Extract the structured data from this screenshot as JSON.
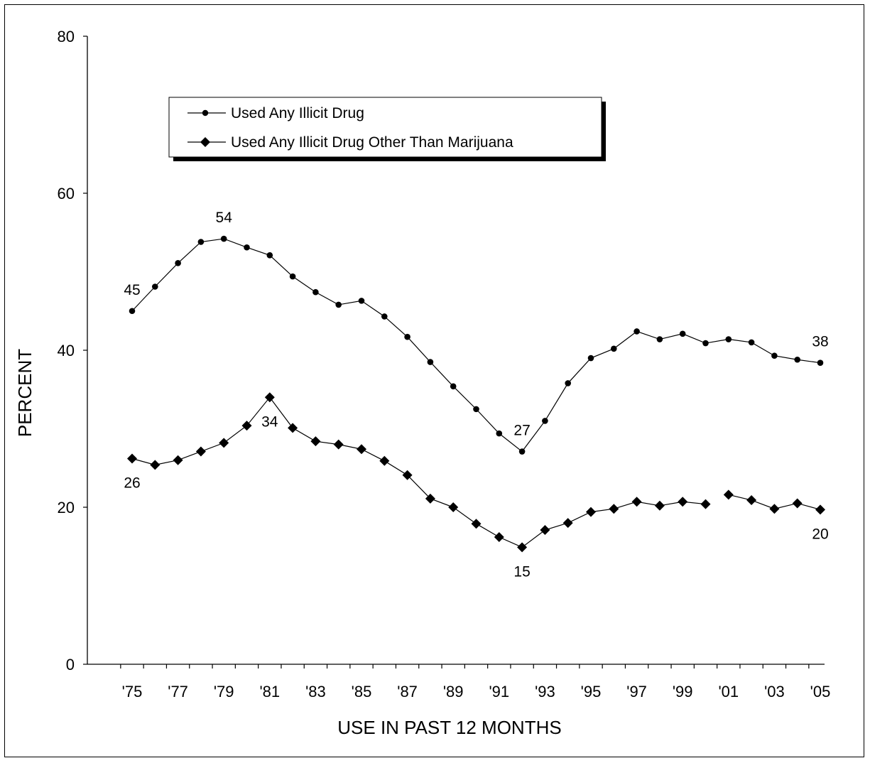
{
  "chart_data": {
    "type": "line",
    "title": "",
    "xlabel": "USE IN PAST 12 MONTHS",
    "ylabel": "PERCENT",
    "ylim": [
      0,
      80
    ],
    "yticks": [
      0,
      20,
      40,
      60,
      80
    ],
    "x": [
      1975,
      1976,
      1977,
      1978,
      1979,
      1980,
      1981,
      1982,
      1983,
      1984,
      1985,
      1986,
      1987,
      1988,
      1989,
      1990,
      1991,
      1992,
      1993,
      1994,
      1995,
      1996,
      1997,
      1998,
      1999,
      2000,
      2001,
      2002,
      2003,
      2004,
      2005
    ],
    "xtick_labels": [
      "'75",
      "'77",
      "'79",
      "'81",
      "'83",
      "'85",
      "'87",
      "'89",
      "'91",
      "'93",
      "'95",
      "'97",
      "'99",
      "'01",
      "'03",
      "'05"
    ],
    "xtick_years": [
      1975,
      1977,
      1979,
      1981,
      1983,
      1985,
      1987,
      1989,
      1991,
      1993,
      1995,
      1997,
      1999,
      2001,
      2003,
      2005
    ],
    "grid": false,
    "legend_position": "top-left",
    "series": [
      {
        "name": "Used Any Illicit Drug",
        "marker": "circle",
        "values": [
          45.0,
          48.1,
          51.1,
          53.8,
          54.2,
          53.1,
          52.1,
          49.4,
          47.4,
          45.8,
          46.3,
          44.3,
          41.7,
          38.5,
          35.4,
          32.5,
          29.4,
          27.1,
          31.0,
          35.8,
          39.0,
          40.2,
          42.4,
          41.4,
          42.1,
          40.9,
          41.4,
          41.0,
          39.3,
          38.8,
          38.4
        ],
        "segments": [
          [
            0,
            30
          ]
        ]
      },
      {
        "name": "Used Any Illicit Drug Other Than Marijuana",
        "marker": "diamond",
        "values": [
          26.2,
          25.4,
          26.0,
          27.1,
          28.2,
          30.4,
          34.0,
          30.1,
          28.4,
          28.0,
          27.4,
          25.9,
          24.1,
          21.1,
          20.0,
          17.9,
          16.2,
          14.9,
          17.1,
          18.0,
          19.4,
          19.8,
          20.7,
          20.2,
          20.7,
          20.4,
          21.6,
          20.9,
          19.8,
          20.5,
          19.7
        ],
        "segments": [
          [
            0,
            25
          ],
          [
            26,
            30
          ]
        ]
      }
    ],
    "annotations": [
      {
        "text": "45",
        "series": 0,
        "year": 1975,
        "pos": "above"
      },
      {
        "text": "54",
        "series": 0,
        "year": 1979,
        "pos": "above"
      },
      {
        "text": "27",
        "series": 0,
        "year": 1992,
        "pos": "above"
      },
      {
        "text": "38",
        "series": 0,
        "year": 2005,
        "pos": "above"
      },
      {
        "text": "26",
        "series": 1,
        "year": 1975,
        "pos": "below"
      },
      {
        "text": "34",
        "series": 1,
        "year": 1981,
        "pos": "below-right"
      },
      {
        "text": "15",
        "series": 1,
        "year": 1992,
        "pos": "below"
      },
      {
        "text": "20",
        "series": 1,
        "year": 2005,
        "pos": "below"
      }
    ]
  }
}
